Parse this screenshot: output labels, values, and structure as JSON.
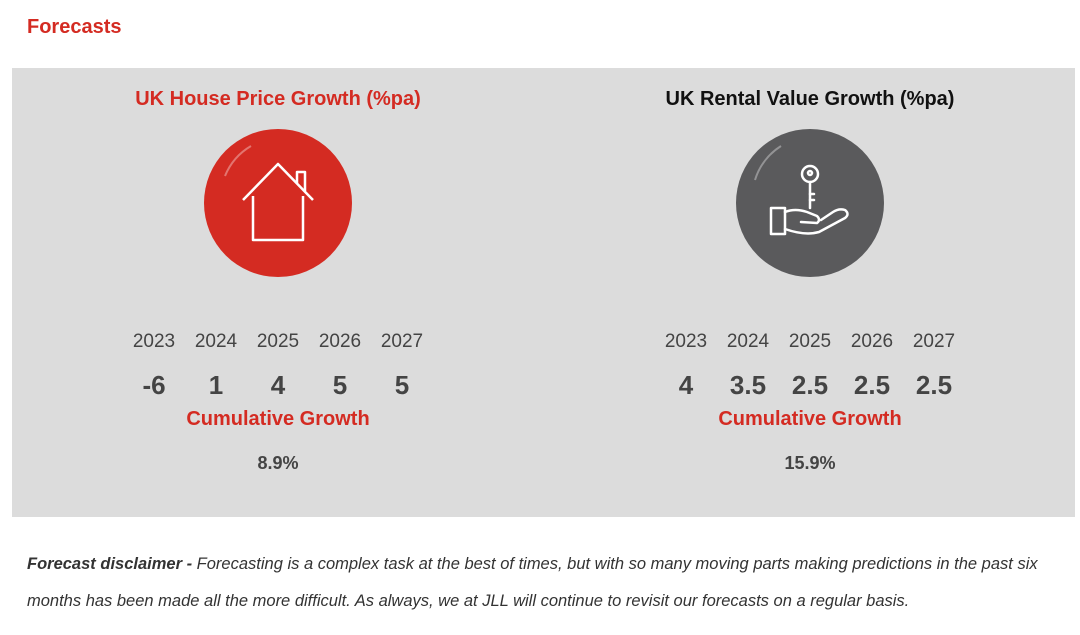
{
  "section": {
    "title": "Forecasts"
  },
  "colors": {
    "accent": "#d42b22",
    "panel_bg": "#dcdcdc",
    "house_circle": "#d42b22",
    "rental_circle": "#5a5a5c",
    "text": "#444444"
  },
  "house": {
    "title": "UK House Price Growth (%pa)",
    "icon": "house-icon",
    "years": [
      "2023",
      "2024",
      "2025",
      "2026",
      "2027"
    ],
    "values": [
      "-6",
      "1",
      "4",
      "5",
      "5"
    ],
    "cumulative_label": "Cumulative Growth",
    "cumulative_value": "8.9%"
  },
  "rental": {
    "title": "UK Rental Value Growth (%pa)",
    "icon": "hand-key-icon",
    "years": [
      "2023",
      "2024",
      "2025",
      "2026",
      "2027"
    ],
    "values": [
      "4",
      "3.5",
      "2.5",
      "2.5",
      "2.5"
    ],
    "cumulative_label": "Cumulative Growth",
    "cumulative_value": "15.9%"
  },
  "disclaimer": {
    "label": "Forecast disclaimer -",
    "text": " Forecasting is a complex task at the best of times, but with so many moving parts making predictions in the past six months has been made all the more difficult. As always, we at JLL will continue to revisit our forecasts on a regular basis."
  }
}
